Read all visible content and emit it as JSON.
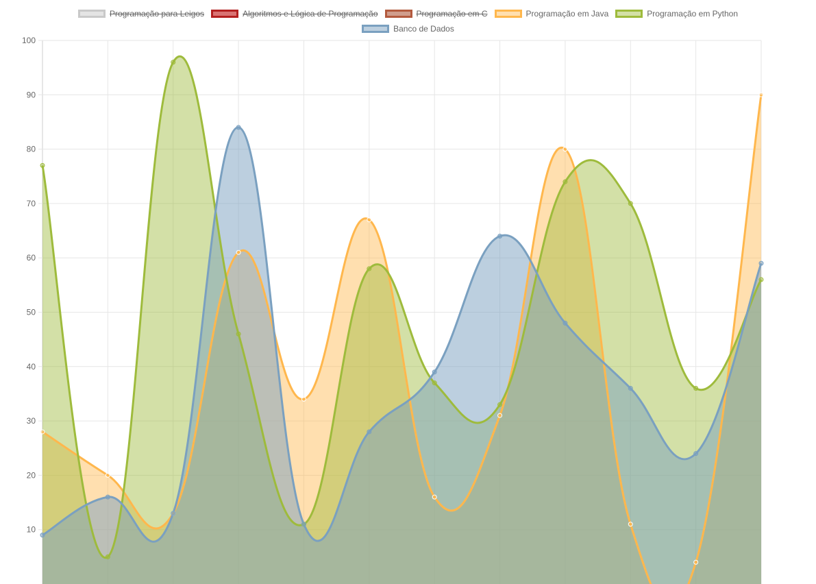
{
  "chart_data": {
    "type": "area",
    "ylim": [
      0,
      100
    ],
    "yticks": [
      10,
      20,
      30,
      40,
      50,
      60,
      70,
      80,
      90,
      100
    ],
    "point_count": 12,
    "grid": true,
    "legend_position": "top",
    "series": [
      {
        "name": "Programação para Leigos",
        "hidden": true,
        "border": "#c9c9c9",
        "fill": "rgba(201,201,201,0.5)",
        "values": []
      },
      {
        "name": "Algoritmos e Lógica de Programação",
        "hidden": true,
        "border": "#b32020",
        "fill": "rgba(210,90,90,0.85)",
        "values": []
      },
      {
        "name": "Programação em C",
        "hidden": true,
        "border": "#b35a3e",
        "fill": "rgba(200,140,120,0.85)",
        "values": []
      },
      {
        "name": "Programação em Java",
        "hidden": false,
        "border": "#ffb74d",
        "fill": "rgba(255,183,77,0.45)",
        "values": [
          28,
          20,
          13,
          61,
          34,
          67,
          16,
          31,
          80,
          11,
          4,
          90
        ]
      },
      {
        "name": "Programação em Python",
        "hidden": false,
        "border": "#9ebb3c",
        "fill": "rgba(158,187,60,0.45)",
        "values": [
          77,
          5,
          96,
          46,
          11,
          58,
          37,
          33,
          74,
          70,
          36,
          56
        ]
      },
      {
        "name": "Banco de Dados",
        "hidden": false,
        "border": "#7aa0c0",
        "fill": "rgba(122,160,192,0.5)",
        "values": [
          9,
          16,
          13,
          84,
          11,
          28,
          39,
          64,
          48,
          36,
          24,
          59
        ]
      }
    ]
  }
}
